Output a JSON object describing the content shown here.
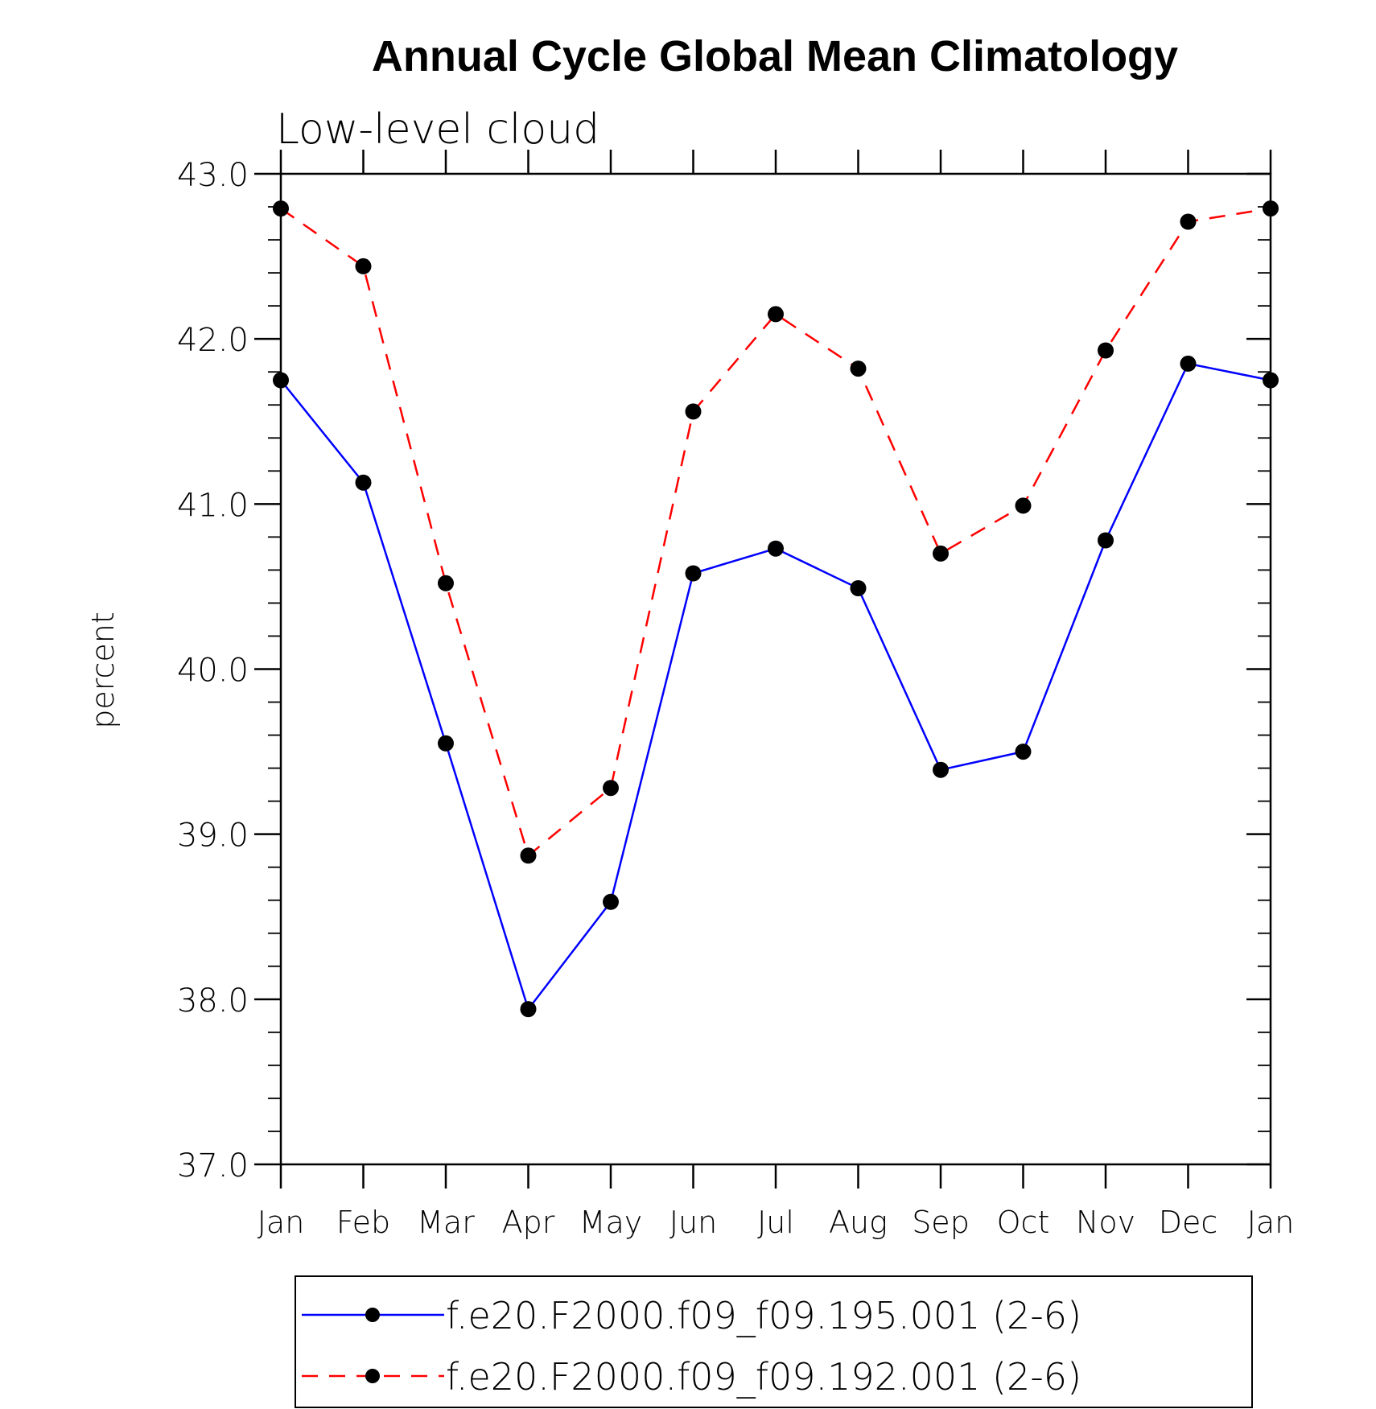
{
  "chart_data": {
    "type": "line",
    "title": "Annual Cycle Global Mean Climatology",
    "subtitle": "Low-level cloud",
    "xlabel": "",
    "ylabel": "percent",
    "ylim": [
      37.0,
      43.0
    ],
    "yticks": [
      "37.0",
      "38.0",
      "39.0",
      "40.0",
      "41.0",
      "42.0",
      "43.0"
    ],
    "categories": [
      "Jan",
      "Feb",
      "Mar",
      "Apr",
      "May",
      "Jun",
      "Jul",
      "Aug",
      "Sep",
      "Oct",
      "Nov",
      "Dec",
      "Jan"
    ],
    "legend_position": "bottom",
    "series": [
      {
        "name": "f.e20.F2000.f09_f09.195.001 (2-6)",
        "color": "#0000ff",
        "line_style": "solid",
        "marker": "circle",
        "values": [
          41.75,
          41.13,
          39.55,
          37.94,
          38.59,
          40.58,
          40.73,
          40.49,
          39.39,
          39.5,
          40.78,
          41.85,
          41.75
        ]
      },
      {
        "name": "f.e20.F2000.f09_f09.192.001 (2-6)",
        "color": "#ff0000",
        "line_style": "dashed",
        "marker": "circle",
        "values": [
          42.79,
          42.44,
          40.52,
          38.87,
          39.28,
          41.56,
          42.15,
          41.82,
          40.7,
          40.99,
          41.93,
          42.71,
          42.79
        ]
      }
    ]
  }
}
